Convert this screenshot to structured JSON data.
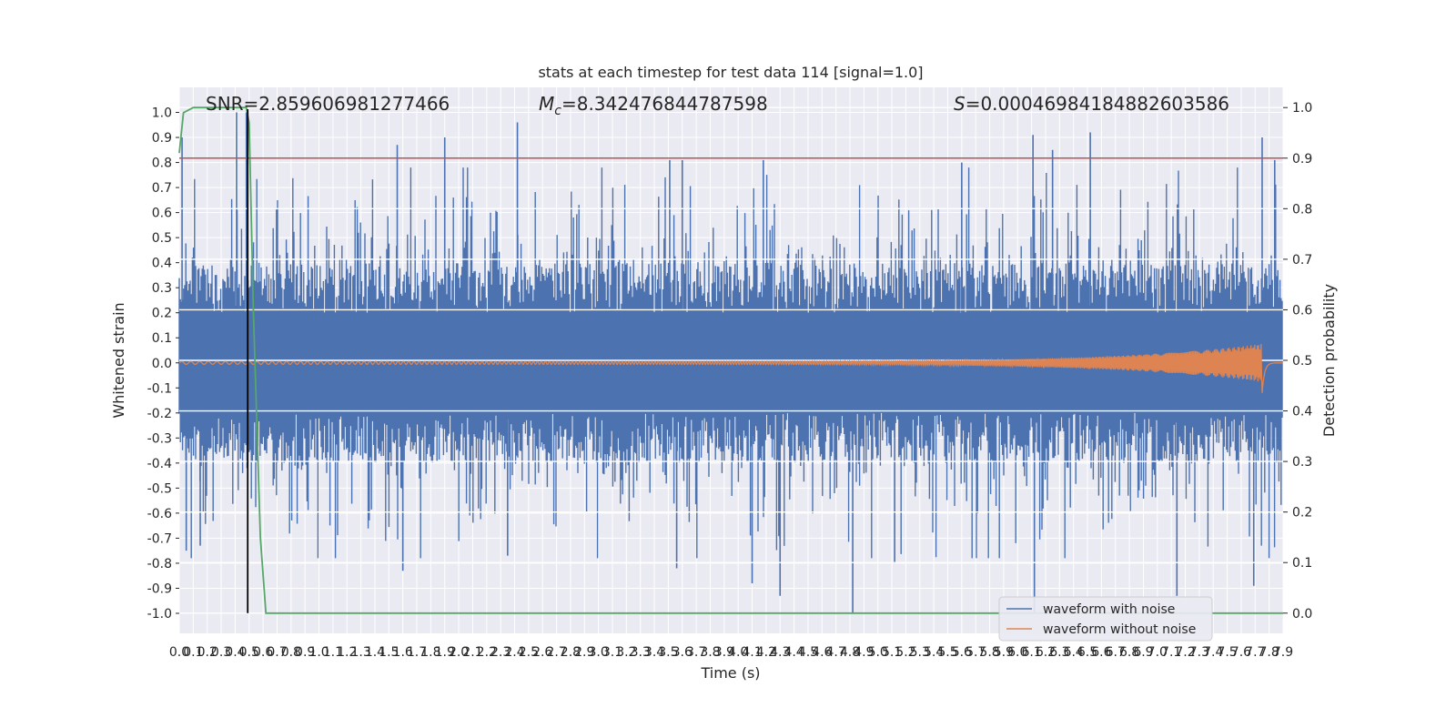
{
  "chart_data": {
    "type": "line",
    "title": "stats at each timestep for test data 114 [signal=1.0]",
    "xlabel": "Time (s)",
    "ylabel_left": "Whitened strain",
    "ylabel_right": "Detection probability",
    "xlim": [
      0.0,
      7.9
    ],
    "ylim_left": [
      -1.08,
      1.1
    ],
    "ylim_right": [
      -0.04,
      1.04
    ],
    "grid": true,
    "xticks": [
      "0.0",
      "0.1",
      "0.2",
      "0.3",
      "0.4",
      "0.5",
      "0.6",
      "0.7",
      "0.8",
      "0.9",
      "1.0",
      "1.1",
      "1.2",
      "1.3",
      "1.4",
      "1.5",
      "1.6",
      "1.7",
      "1.8",
      "1.9",
      "2.0",
      "2.1",
      "2.2",
      "2.3",
      "2.4",
      "2.5",
      "2.6",
      "2.7",
      "2.8",
      "2.9",
      "3.0",
      "3.1",
      "3.2",
      "3.3",
      "3.4",
      "3.5",
      "3.6",
      "3.7",
      "3.8",
      "3.9",
      "4.0",
      "4.1",
      "4.2",
      "4.3",
      "4.4",
      "4.5",
      "4.6",
      "4.7",
      "4.8",
      "4.9",
      "5.0",
      "5.1",
      "5.2",
      "5.3",
      "5.4",
      "5.5",
      "5.6",
      "5.7",
      "5.8",
      "5.9",
      "6.0",
      "6.1",
      "6.2",
      "6.3",
      "6.4",
      "6.5",
      "6.6",
      "6.7",
      "6.8",
      "6.9",
      "7.0",
      "7.1",
      "7.2",
      "7.3",
      "7.4",
      "7.5",
      "7.6",
      "7.7",
      "7.8",
      "7.9"
    ],
    "yticks_left": [
      "1.0",
      "0.9",
      "0.8",
      "0.7",
      "0.6",
      "0.5",
      "0.4",
      "0.3",
      "0.2",
      "0.1",
      "0.0",
      "-0.1",
      "-0.2",
      "-0.3",
      "-0.4",
      "-0.5",
      "-0.6",
      "-0.7",
      "-0.8",
      "-0.9",
      "-1.0"
    ],
    "yticks_right": [
      "1.0",
      "0.9",
      "0.8",
      "0.7",
      "0.6",
      "0.5",
      "0.4",
      "0.3",
      "0.2",
      "0.1",
      "0.0"
    ],
    "annotations": {
      "snr": "SNR=2.859606981277466",
      "mc_symbol": "M",
      "mc_sub": "c",
      "mc_value": "=8.342476844787598",
      "s_symbol": "S",
      "s_value": "=0.00046984184882603586"
    },
    "series": [
      {
        "name": "waveform with noise",
        "axis": "left",
        "color": "#4c72b0",
        "noise_sigma": 0.33,
        "peaks": [
          [
            0.02,
            0.9
          ],
          [
            0.41,
            1.0
          ],
          [
            0.48,
            1.0
          ],
          [
            1.56,
            0.87
          ],
          [
            1.9,
            0.9
          ],
          [
            2.42,
            0.96
          ],
          [
            3.51,
            0.81
          ],
          [
            3.6,
            0.81
          ],
          [
            4.18,
            0.81
          ],
          [
            5.6,
            0.8
          ],
          [
            6.11,
            0.91
          ],
          [
            6.25,
            0.85
          ],
          [
            6.52,
            0.92
          ],
          [
            7.75,
            0.9
          ],
          [
            7.84,
            0.81
          ]
        ],
        "troughs": [
          [
            0.05,
            -0.75
          ],
          [
            0.15,
            -0.73
          ],
          [
            1.6,
            -0.83
          ],
          [
            2.35,
            -0.77
          ],
          [
            3.56,
            -0.82
          ],
          [
            4.1,
            -0.88
          ],
          [
            4.3,
            -0.93
          ],
          [
            4.82,
            -1.0
          ],
          [
            5.12,
            -0.8
          ],
          [
            6.12,
            -1.0
          ],
          [
            7.14,
            -0.93
          ],
          [
            7.69,
            -0.89
          ]
        ]
      },
      {
        "name": "waveform without noise",
        "axis": "left",
        "color": "#dd8452",
        "note": "chirp: tiny amplitude growing to ~0.08 near 7.75 s, merger spike to -0.12"
      },
      {
        "name": "detection probability",
        "axis": "right",
        "color": "#55a868",
        "points": [
          [
            0.0,
            0.91
          ],
          [
            0.03,
            0.99
          ],
          [
            0.1,
            1.0
          ],
          [
            0.48,
            1.0
          ],
          [
            0.5,
            0.97
          ],
          [
            0.53,
            0.6
          ],
          [
            0.58,
            0.15
          ],
          [
            0.62,
            0.0
          ],
          [
            7.9,
            0.0
          ]
        ]
      }
    ],
    "threshold_line": {
      "axis": "right",
      "value": 0.9,
      "color": "#c44e52"
    },
    "vertical_marker": {
      "x": 0.49,
      "axis_bottom_right": 0.0,
      "color": "#000000"
    },
    "legend": {
      "placement": "lower-right",
      "entries": [
        {
          "label": "waveform with noise",
          "color": "#4c72b0"
        },
        {
          "label": "waveform without noise",
          "color": "#dd8452"
        }
      ]
    }
  }
}
